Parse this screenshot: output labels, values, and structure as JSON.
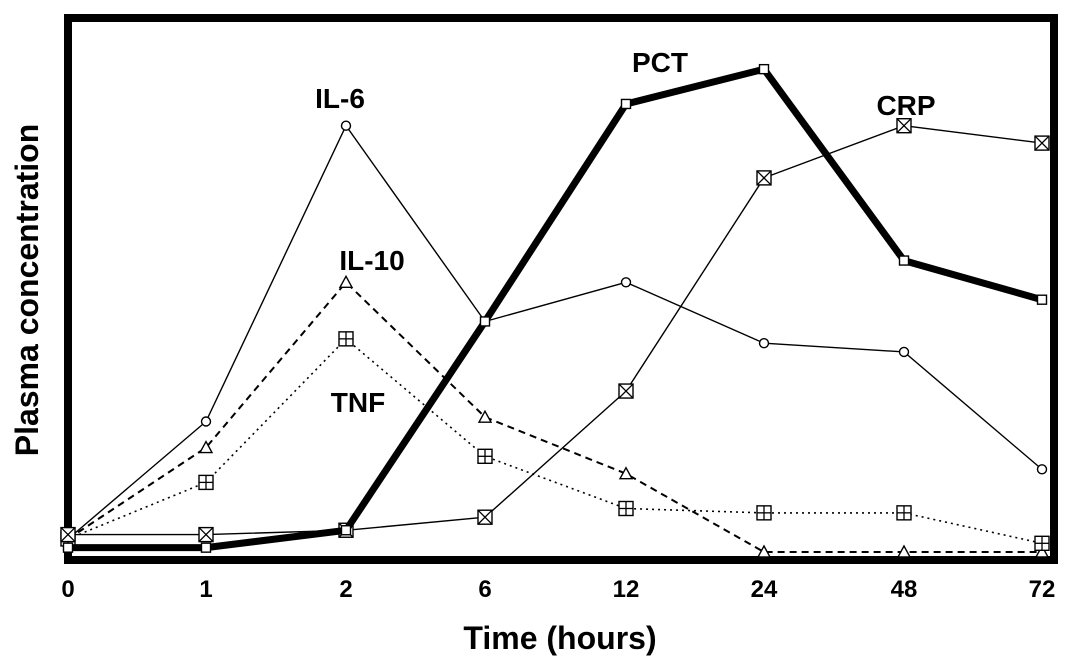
{
  "chart_data": {
    "type": "line",
    "title": "",
    "xlabel": "Time (hours)",
    "ylabel": "Plasma concentration",
    "categories": [
      "0",
      "1",
      "2",
      "6",
      "12",
      "24",
      "48",
      "72"
    ],
    "ylim": [
      0,
      100
    ],
    "grid": false,
    "legend": "inline labels",
    "series": [
      {
        "name": "IL-6",
        "values": [
          3,
          30,
          98,
          53,
          62,
          48,
          46,
          19
        ],
        "marker": "circle",
        "line": "solid-thin"
      },
      {
        "name": "IL-10",
        "values": [
          3,
          24,
          62,
          31,
          18,
          0,
          0,
          0
        ],
        "marker": "triangle",
        "line": "dashed"
      },
      {
        "name": "TNF",
        "values": [
          3,
          16,
          49,
          22,
          10,
          9,
          9,
          2
        ],
        "marker": "square-plus",
        "line": "dotted"
      },
      {
        "name": "PCT",
        "values": [
          1,
          1,
          5,
          53,
          103,
          111,
          67,
          58
        ],
        "marker": "square",
        "line": "solid-thick"
      },
      {
        "name": "CRP",
        "values": [
          4,
          4,
          5,
          8,
          37,
          86,
          98,
          94
        ],
        "marker": "square-x",
        "line": "solid-thin"
      }
    ]
  }
}
